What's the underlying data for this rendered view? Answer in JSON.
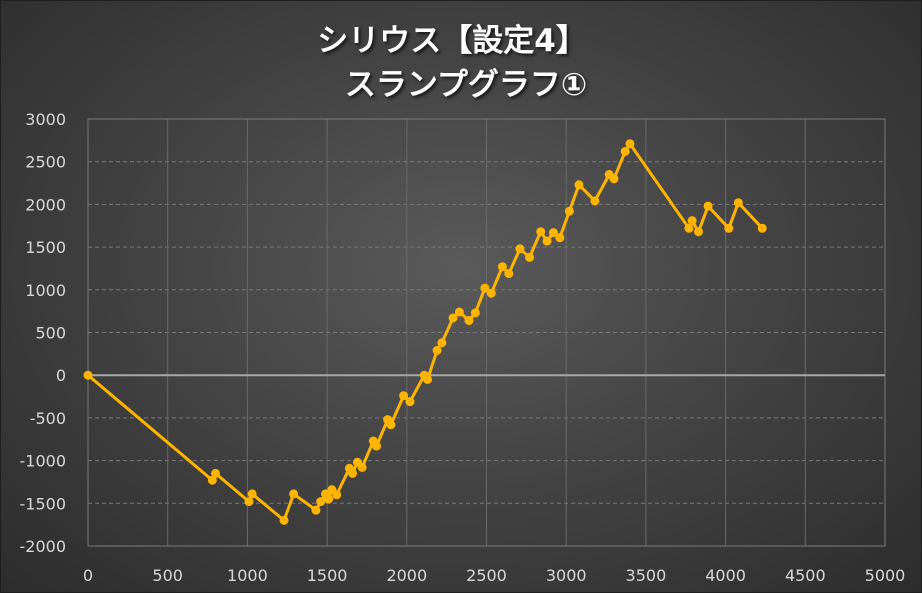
{
  "chart_data": {
    "type": "line",
    "title_line1": "シリウス【設定4】",
    "title_line2": "スランプグラフ①",
    "xlim": [
      0,
      5000
    ],
    "ylim": [
      -2000,
      3000
    ],
    "x_ticks": [
      0,
      500,
      1000,
      1500,
      2000,
      2500,
      3000,
      3500,
      4000,
      4500,
      5000
    ],
    "y_ticks": [
      3000,
      2500,
      2000,
      1500,
      1000,
      500,
      0,
      -500,
      -1000,
      -1500,
      -2000
    ],
    "grid": true,
    "legend": "none",
    "series": [
      {
        "color": "#ffb400",
        "points": [
          [
            0,
            0
          ],
          [
            780,
            -1230
          ],
          [
            800,
            -1150
          ],
          [
            1010,
            -1480
          ],
          [
            1030,
            -1390
          ],
          [
            1230,
            -1700
          ],
          [
            1290,
            -1390
          ],
          [
            1430,
            -1580
          ],
          [
            1460,
            -1480
          ],
          [
            1490,
            -1390
          ],
          [
            1510,
            -1450
          ],
          [
            1530,
            -1340
          ],
          [
            1560,
            -1400
          ],
          [
            1640,
            -1090
          ],
          [
            1660,
            -1150
          ],
          [
            1690,
            -1020
          ],
          [
            1720,
            -1080
          ],
          [
            1790,
            -770
          ],
          [
            1810,
            -830
          ],
          [
            1880,
            -520
          ],
          [
            1900,
            -580
          ],
          [
            1980,
            -240
          ],
          [
            2020,
            -310
          ],
          [
            2110,
            0
          ],
          [
            2130,
            -50
          ],
          [
            2190,
            290
          ],
          [
            2220,
            380
          ],
          [
            2290,
            670
          ],
          [
            2330,
            740
          ],
          [
            2390,
            640
          ],
          [
            2430,
            730
          ],
          [
            2490,
            1020
          ],
          [
            2530,
            960
          ],
          [
            2600,
            1270
          ],
          [
            2640,
            1190
          ],
          [
            2710,
            1480
          ],
          [
            2770,
            1380
          ],
          [
            2840,
            1680
          ],
          [
            2880,
            1570
          ],
          [
            2920,
            1670
          ],
          [
            2960,
            1610
          ],
          [
            3020,
            1920
          ],
          [
            3080,
            2230
          ],
          [
            3180,
            2040
          ],
          [
            3270,
            2350
          ],
          [
            3300,
            2300
          ],
          [
            3370,
            2620
          ],
          [
            3400,
            2710
          ],
          [
            3770,
            1720
          ],
          [
            3790,
            1810
          ],
          [
            3830,
            1680
          ],
          [
            3890,
            1980
          ],
          [
            4020,
            1720
          ],
          [
            4080,
            2020
          ],
          [
            4230,
            1720
          ]
        ]
      }
    ]
  }
}
